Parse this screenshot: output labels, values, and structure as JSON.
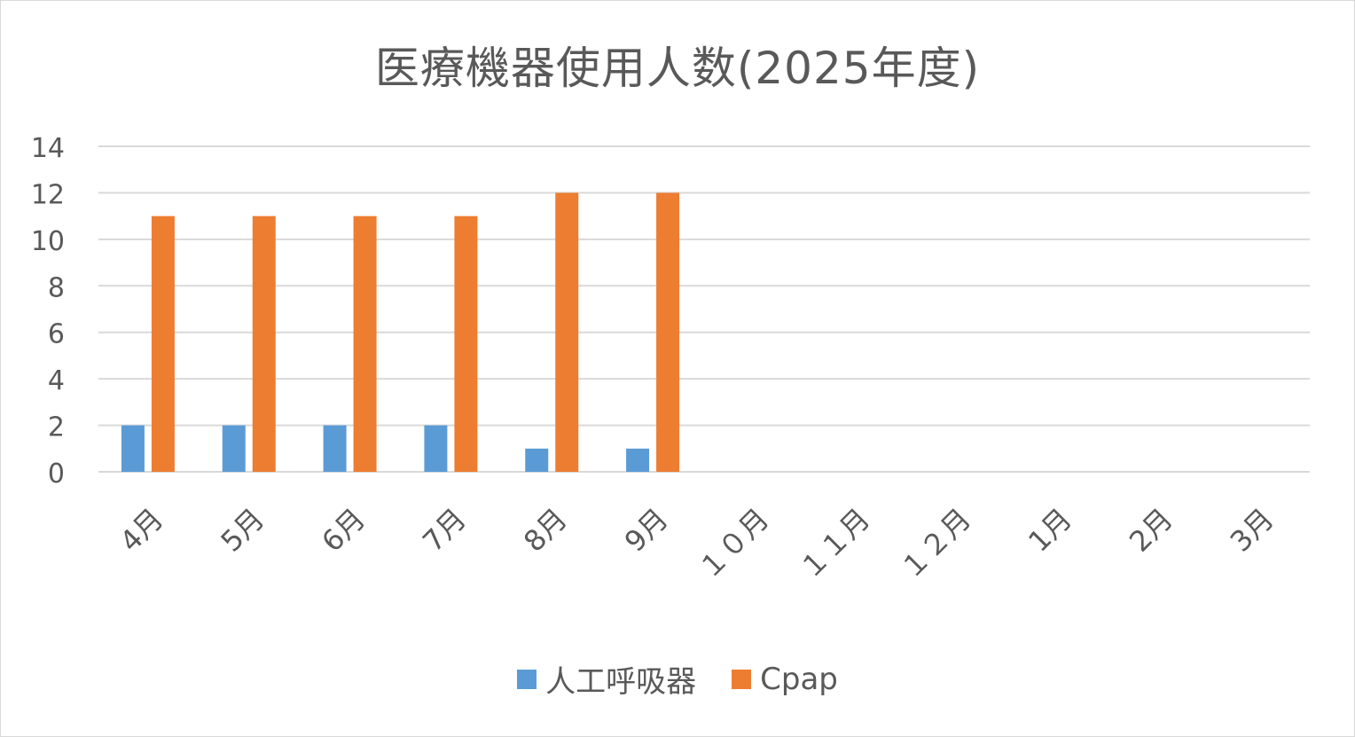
{
  "chart_data": {
    "type": "bar",
    "title": "医療機器使用人数(2025年度)",
    "categories": [
      "4月",
      "5月",
      "6月",
      "7月",
      "8月",
      "9月",
      "１０月",
      "１１月",
      "１２月",
      "1月",
      "2月",
      "3月"
    ],
    "series": [
      {
        "name": "人工呼吸器",
        "color": "#5b9bd5",
        "values": [
          2,
          2,
          2,
          2,
          1,
          1,
          null,
          null,
          null,
          null,
          null,
          null
        ]
      },
      {
        "name": "Cpap",
        "color": "#ed7d31",
        "values": [
          11,
          11,
          11,
          11,
          12,
          12,
          null,
          null,
          null,
          null,
          null,
          null
        ]
      }
    ],
    "ylim": [
      0,
      14
    ],
    "yticks": [
      "0",
      "2",
      "4",
      "6",
      "8",
      "10",
      "12",
      "14"
    ],
    "xlabel": "",
    "ylabel": "",
    "grid": true,
    "legend_position": "bottom"
  }
}
